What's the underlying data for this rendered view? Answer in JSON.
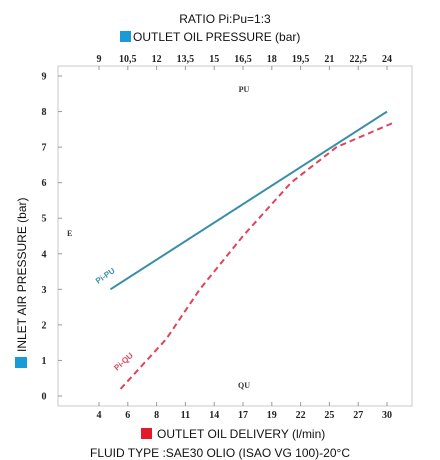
{
  "chart_data": {
    "type": "line",
    "title": "RATIO  Pi:Pu=1:3",
    "top_axis": {
      "label": "OUTLET OIL PRESSURE (bar)",
      "ticks": [
        "9",
        "10,5",
        "12",
        "13,5",
        "15",
        "16,5",
        "18",
        "19,5",
        "21",
        "22,5",
        "24"
      ],
      "legend_color": "#1a9ad6"
    },
    "bottom_axis": {
      "label": "OUTLET OIL DELIVERY (l/min)",
      "ticks": [
        "4",
        "6",
        "8",
        "11",
        "14",
        "17",
        "19",
        "22",
        "25",
        "27",
        "30"
      ],
      "legend_color": "#e01c2c"
    },
    "y_axis": {
      "label": "INLET AIR PRESSURE (bar)",
      "ticks": [
        "0",
        "1",
        "2",
        "3",
        "4",
        "5",
        "6",
        "7",
        "8",
        "9"
      ],
      "ylim": [
        0,
        9
      ],
      "legend_color": "#1a9ad6"
    },
    "footer": "FLUID TYPE :SAE30 OLIO (ISAO VG 100)-20°C",
    "annotations": {
      "pu": "PU",
      "qu": "QU",
      "side": "E"
    },
    "grid": false,
    "series": [
      {
        "name": "Pi-PU",
        "style": "solid",
        "color": "#3a8fa8",
        "axis": "top",
        "points": [
          [
            9.6,
            3.0
          ],
          [
            24.0,
            8.0
          ]
        ]
      },
      {
        "name": "Pi-QU",
        "style": "dashed",
        "color": "#e0435c",
        "axis": "bottom",
        "points": [
          [
            5.5,
            0.2
          ],
          [
            9.0,
            1.6
          ],
          [
            12.5,
            3.0
          ],
          [
            17.0,
            4.5
          ],
          [
            21.0,
            6.0
          ],
          [
            25.5,
            7.0
          ],
          [
            30.8,
            7.7
          ]
        ]
      }
    ]
  }
}
